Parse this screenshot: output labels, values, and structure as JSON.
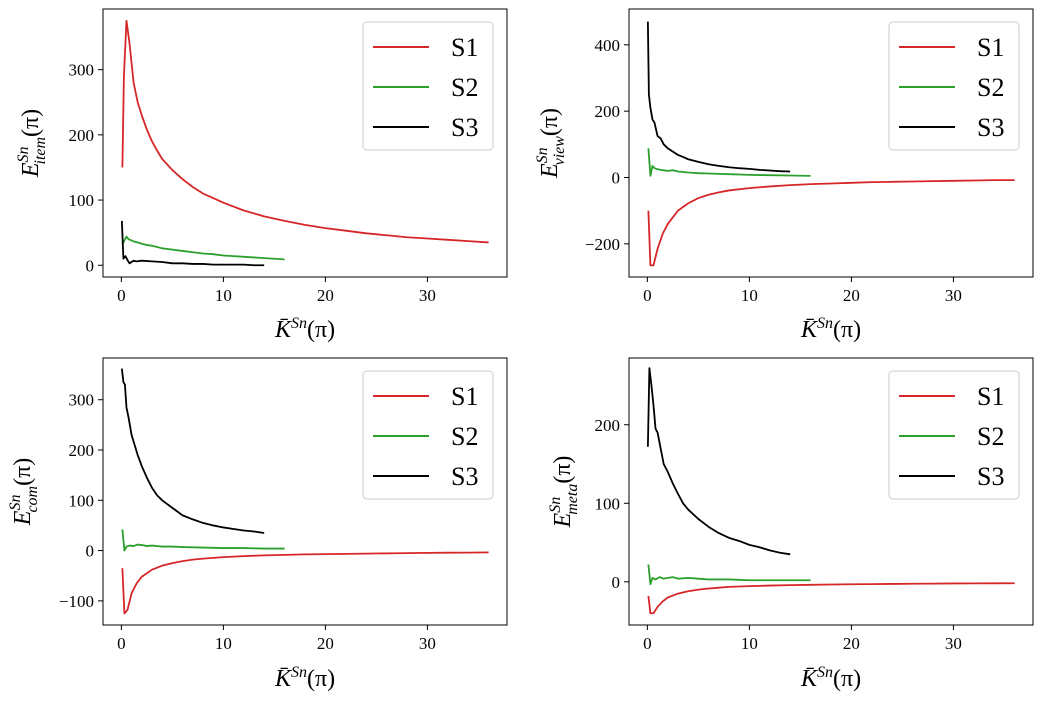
{
  "chart_data": [
    {
      "type": "line",
      "panel": "top-left",
      "ylabel": {
        "main": "E",
        "sup": "Sn",
        "sub": "item",
        "arg": "(π)"
      },
      "xlabel": {
        "main": "K̄",
        "sup": "Sn",
        "arg": "(π)"
      },
      "xlim": [
        -1.8,
        37.8
      ],
      "ylim": [
        -18,
        393
      ],
      "xticks": [
        0,
        10,
        20,
        30
      ],
      "yticks": [
        0,
        100,
        200,
        300
      ],
      "legend_position": "top-right",
      "series": [
        {
          "name": "S1",
          "color": "#d62728",
          "x": [
            0.1,
            0.25,
            0.5,
            0.8,
            1.2,
            1.6,
            2,
            2.5,
            3,
            3.5,
            4,
            5,
            6,
            7,
            8,
            9,
            10,
            12,
            14,
            16,
            18,
            20,
            22,
            24,
            26,
            28,
            30,
            32,
            34,
            36
          ],
          "y": [
            150,
            290,
            375,
            340,
            280,
            250,
            230,
            208,
            190,
            176,
            163,
            146,
            132,
            120,
            110,
            103,
            96,
            84,
            75,
            68,
            62,
            57,
            53,
            49,
            46,
            43,
            41,
            39,
            37,
            35
          ]
        },
        {
          "name": "S2",
          "color": "#2ca02c",
          "x": [
            0.1,
            0.3,
            0.5,
            0.7,
            1,
            1.3,
            1.6,
            2,
            2.5,
            3,
            3.5,
            4,
            5,
            6,
            7,
            8,
            9,
            10,
            11,
            12,
            13,
            14,
            15,
            16
          ],
          "y": [
            32,
            38,
            44,
            40,
            38,
            36,
            35,
            33,
            31,
            30,
            28,
            26,
            24,
            22,
            20,
            18,
            17,
            15,
            14,
            13,
            12,
            11,
            10,
            9
          ]
        },
        {
          "name": "S3",
          "color": "#000000",
          "x": [
            0.05,
            0.2,
            0.4,
            0.6,
            0.8,
            1,
            1.2,
            1.5,
            2,
            3,
            4,
            5,
            6,
            7,
            8,
            9,
            10,
            11,
            12,
            13,
            14
          ],
          "y": [
            68,
            10,
            14,
            8,
            3,
            5,
            7,
            6,
            7,
            6,
            5,
            3,
            3,
            2,
            2,
            1,
            1,
            1,
            1,
            0,
            0
          ]
        }
      ]
    },
    {
      "type": "line",
      "panel": "top-right",
      "ylabel": {
        "main": "E",
        "sup": "Sn",
        "sub": "view",
        "arg": "(π)"
      },
      "xlabel": {
        "main": "K̄",
        "sup": "Sn",
        "arg": "(π)"
      },
      "xlim": [
        -1.8,
        37.8
      ],
      "ylim": [
        -300,
        508
      ],
      "xticks": [
        0,
        10,
        20,
        30
      ],
      "yticks": [
        -200,
        0,
        200,
        400
      ],
      "legend_position": "top-right",
      "series": [
        {
          "name": "S1",
          "color": "#d62728",
          "x": [
            0.1,
            0.3,
            0.6,
            1,
            1.5,
            2,
            3,
            4,
            5,
            6,
            7,
            8,
            10,
            12,
            14,
            16,
            18,
            20,
            22,
            24,
            26,
            28,
            30,
            32,
            34,
            36
          ],
          "y": [
            -100,
            -265,
            -265,
            -215,
            -170,
            -140,
            -100,
            -78,
            -62,
            -52,
            -45,
            -39,
            -32,
            -27,
            -23,
            -20,
            -18,
            -16,
            -14,
            -13,
            -12,
            -11,
            -10,
            -9,
            -8,
            -8
          ]
        },
        {
          "name": "S2",
          "color": "#2ca02c",
          "x": [
            0.1,
            0.3,
            0.5,
            0.7,
            1,
            1.5,
            2,
            2.5,
            3,
            4,
            5,
            6,
            7,
            8,
            9,
            10,
            12,
            14,
            16
          ],
          "y": [
            88,
            5,
            35,
            28,
            25,
            22,
            20,
            22,
            18,
            15,
            13,
            12,
            11,
            10,
            9,
            8,
            7,
            6,
            5
          ]
        },
        {
          "name": "S3",
          "color": "#000000",
          "x": [
            0.05,
            0.15,
            0.3,
            0.5,
            0.7,
            1,
            1.3,
            1.6,
            2,
            2.5,
            3,
            3.5,
            4,
            5,
            6,
            7,
            8,
            9,
            10,
            11,
            12,
            13,
            14
          ],
          "y": [
            470,
            250,
            210,
            175,
            165,
            125,
            118,
            100,
            88,
            78,
            68,
            62,
            55,
            47,
            40,
            35,
            31,
            28,
            26,
            23,
            21,
            19,
            18
          ]
        }
      ]
    },
    {
      "type": "line",
      "panel": "bottom-left",
      "ylabel": {
        "main": "E",
        "sup": "Sn",
        "sub": "com",
        "arg": "(π)"
      },
      "xlabel": {
        "main": "K̄",
        "sup": "Sn",
        "arg": "(π)"
      },
      "xlim": [
        -1.8,
        37.8
      ],
      "ylim": [
        -148,
        383
      ],
      "xticks": [
        0,
        10,
        20,
        30
      ],
      "yticks": [
        -100,
        0,
        100,
        200,
        300
      ],
      "legend_position": "top-right",
      "series": [
        {
          "name": "S1",
          "color": "#d62728",
          "x": [
            0.1,
            0.3,
            0.6,
            1,
            1.5,
            2,
            3,
            4,
            5,
            6,
            7,
            8,
            10,
            12,
            14,
            16,
            18,
            20,
            22,
            24,
            26,
            28,
            30,
            32,
            34,
            36
          ],
          "y": [
            -35,
            -125,
            -118,
            -85,
            -65,
            -52,
            -38,
            -30,
            -25,
            -21,
            -18,
            -16,
            -13,
            -11,
            -9.5,
            -8.5,
            -7.5,
            -7,
            -6.5,
            -6,
            -5.5,
            -5,
            -4.5,
            -4.2,
            -4,
            -3.5
          ]
        },
        {
          "name": "S2",
          "color": "#2ca02c",
          "x": [
            0.1,
            0.3,
            0.5,
            0.8,
            1.2,
            1.6,
            2,
            2.5,
            3,
            4,
            5,
            6,
            8,
            10,
            12,
            14,
            16
          ],
          "y": [
            42,
            0,
            8,
            10,
            9,
            12,
            11,
            9,
            10,
            8,
            8,
            7,
            6,
            5,
            5,
            4,
            4
          ]
        },
        {
          "name": "S3",
          "color": "#000000",
          "x": [
            0.05,
            0.2,
            0.35,
            0.5,
            0.7,
            1,
            1.3,
            1.6,
            2,
            2.5,
            3,
            3.5,
            4,
            5,
            6,
            7,
            8,
            9,
            10,
            11,
            12,
            13,
            14
          ],
          "y": [
            362,
            335,
            330,
            285,
            265,
            230,
            210,
            190,
            168,
            145,
            125,
            110,
            100,
            85,
            70,
            62,
            55,
            50,
            46,
            43,
            40,
            38,
            35
          ]
        }
      ]
    },
    {
      "type": "line",
      "panel": "bottom-right",
      "ylabel": {
        "main": "E",
        "sup": "Sn",
        "sub": "meta",
        "arg": "(π)"
      },
      "xlabel": {
        "main": "K̄",
        "sup": "Sn",
        "arg": "(π)"
      },
      "xlim": [
        -1.8,
        37.8
      ],
      "ylim": [
        -55,
        285
      ],
      "xticks": [
        0,
        10,
        20,
        30
      ],
      "yticks": [
        0,
        100,
        200
      ],
      "legend_position": "top-right",
      "series": [
        {
          "name": "S1",
          "color": "#d62728",
          "x": [
            0.1,
            0.3,
            0.6,
            1,
            1.5,
            2,
            3,
            4,
            5,
            6,
            7,
            8,
            10,
            12,
            14,
            16,
            18,
            20,
            22,
            24,
            26,
            28,
            30,
            32,
            34,
            36
          ],
          "y": [
            -18,
            -40,
            -40,
            -32,
            -25,
            -20,
            -15,
            -12,
            -10,
            -8.5,
            -7.5,
            -6.5,
            -5.5,
            -4.8,
            -4.2,
            -3.8,
            -3.4,
            -3.1,
            -2.9,
            -2.7,
            -2.5,
            -2.3,
            -2.1,
            -2,
            -1.9,
            -1.8
          ]
        },
        {
          "name": "S2",
          "color": "#2ca02c",
          "x": [
            0.1,
            0.3,
            0.5,
            0.8,
            1.2,
            1.6,
            2,
            2.5,
            3,
            4,
            5,
            6,
            8,
            10,
            12,
            14,
            16
          ],
          "y": [
            22,
            -3,
            5,
            3,
            6,
            4,
            5,
            6,
            4,
            5,
            4,
            3,
            3,
            2,
            2,
            2,
            2
          ]
        },
        {
          "name": "S3",
          "color": "#000000",
          "x": [
            0.05,
            0.2,
            0.4,
            0.6,
            0.8,
            1,
            1.3,
            1.6,
            2,
            2.5,
            3,
            3.5,
            4,
            5,
            6,
            7,
            8,
            9,
            10,
            11,
            12,
            13,
            14
          ],
          "y": [
            172,
            272,
            250,
            225,
            195,
            190,
            170,
            150,
            140,
            125,
            112,
            100,
            92,
            80,
            70,
            62,
            56,
            52,
            47,
            44,
            40,
            37,
            35
          ]
        }
      ]
    }
  ]
}
